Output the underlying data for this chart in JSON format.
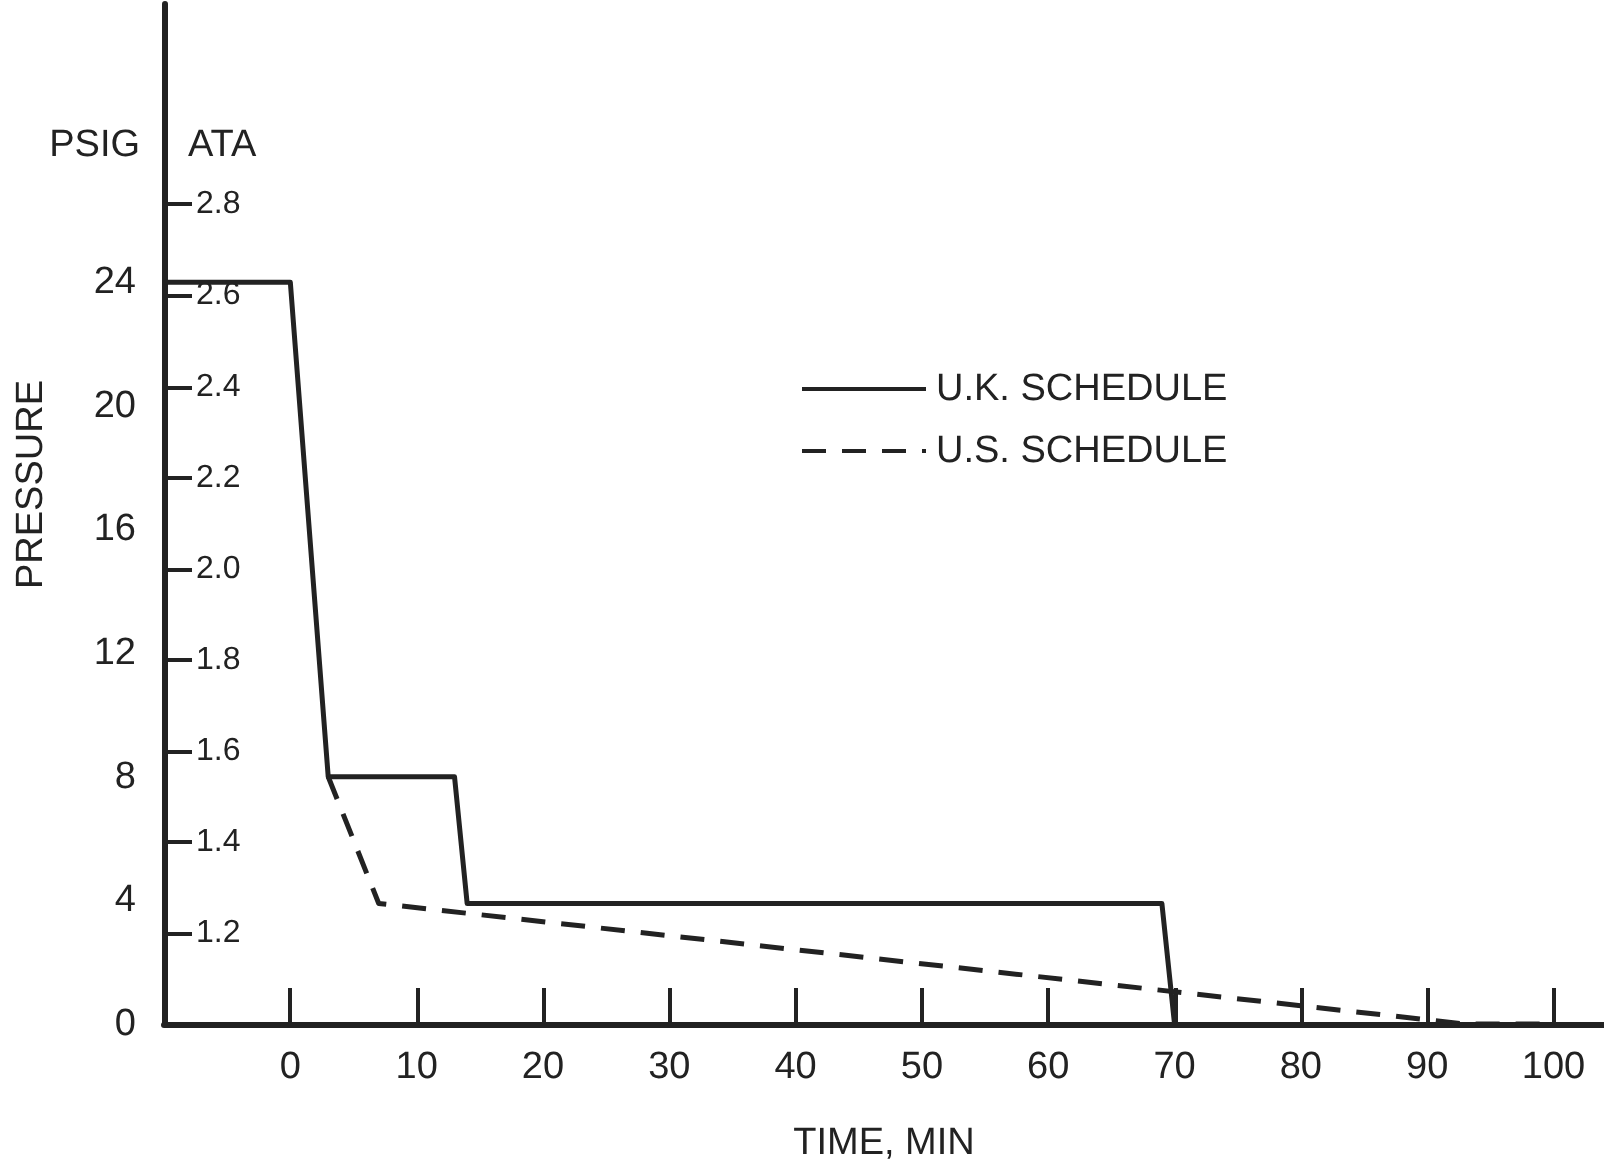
{
  "chart_data": {
    "type": "line",
    "xlabel": "TIME, MIN",
    "ylabel": "PSIG",
    "y2label": "ATA",
    "annotations": [
      "PRESSURE"
    ],
    "series": [
      {
        "name": "U.K. SCHEDULE",
        "color": "#222222",
        "line_style": "solid",
        "x": [
          -10,
          0,
          3,
          13,
          14,
          69,
          70
        ],
        "values": [
          24,
          24,
          8,
          8,
          3.9,
          3.9,
          0
        ]
      },
      {
        "name": "U.S. SCHEDULE",
        "color": "#222222",
        "line_style": "dashed",
        "x": [
          3,
          7,
          93,
          100
        ],
        "values": [
          8,
          3.9,
          0,
          0
        ]
      }
    ],
    "xlim": [
      -10,
      104
    ],
    "xticks": [
      0,
      10,
      20,
      30,
      40,
      50,
      60,
      70,
      80,
      90,
      100
    ],
    "ylim": [
      0,
      33
    ],
    "yticks": [
      0,
      4,
      8,
      12,
      16,
      20,
      24
    ],
    "y2lim": [
      1,
      3.24
    ],
    "y2ticks": [
      1.2,
      1.4,
      1.6,
      1.8,
      {
        "value": 2,
        "label": "2.0"
      },
      2.2,
      2.4,
      2.6,
      2.8
    ],
    "legend": "top right"
  }
}
